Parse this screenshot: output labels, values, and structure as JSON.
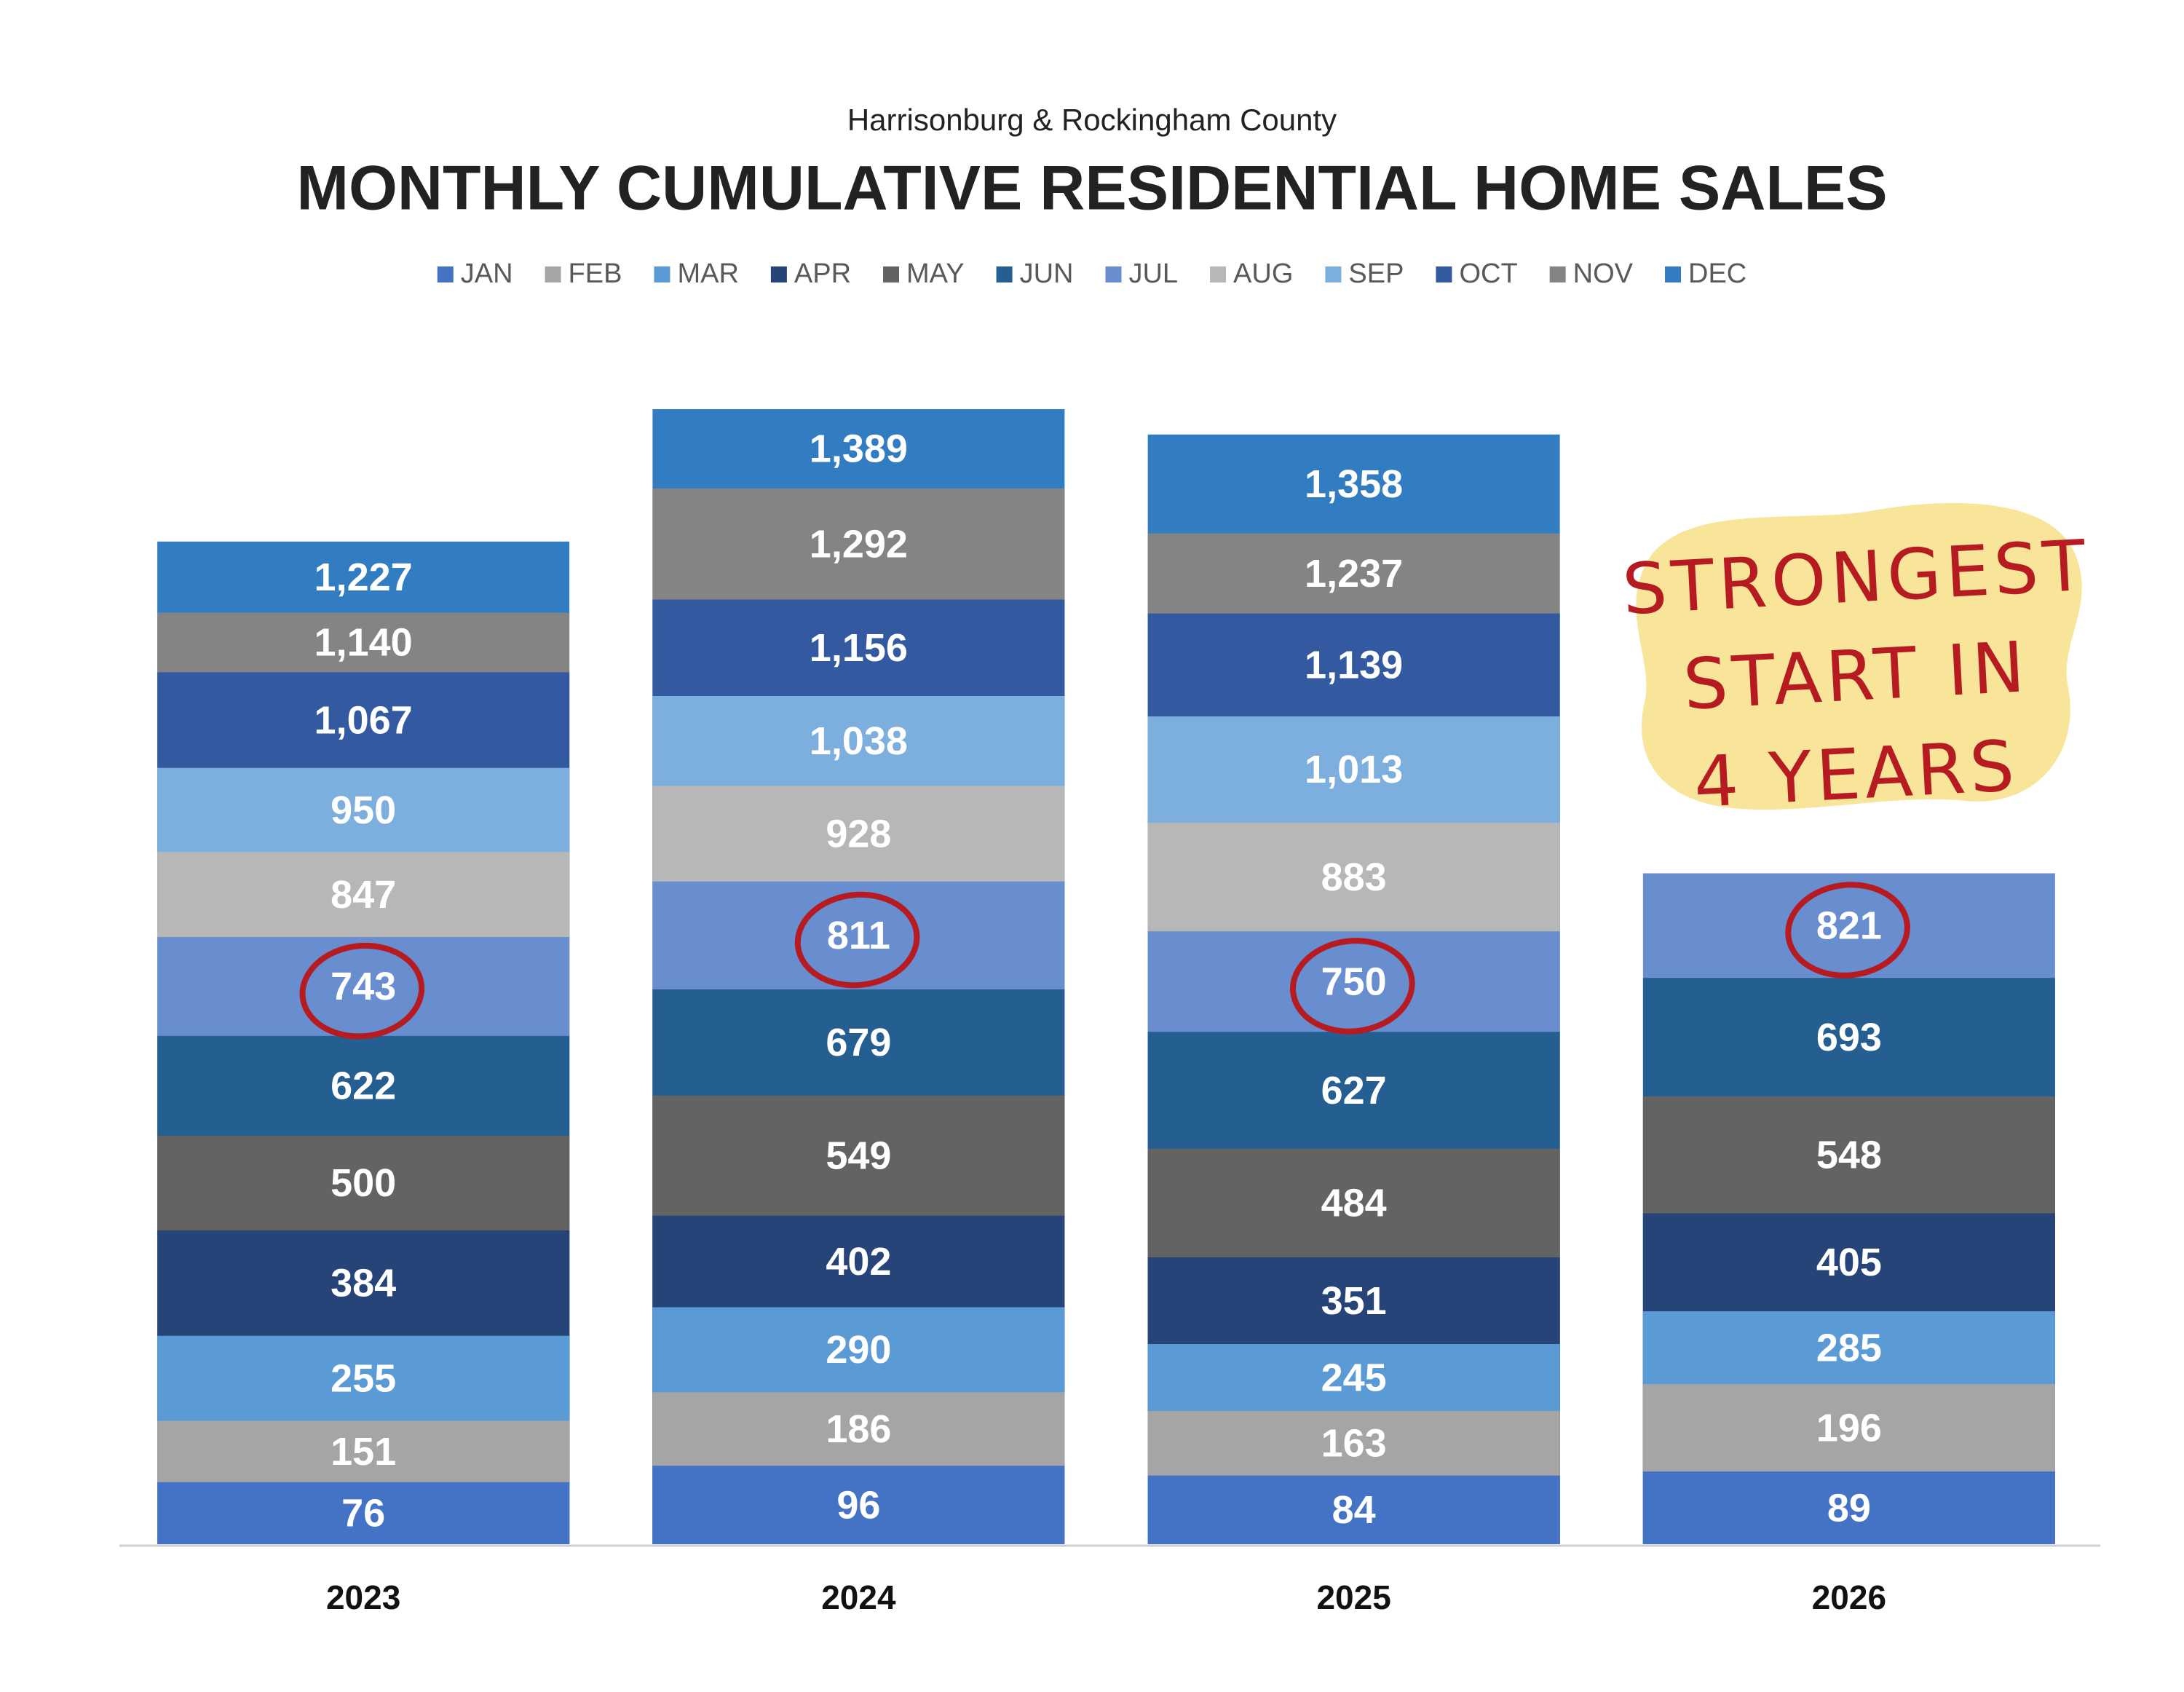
{
  "chart_data": {
    "type": "bar",
    "subtitle": "Harrisonburg & Rockingham County",
    "title": "MONTHLY CUMULATIVE RESIDENTIAL HOME SALES",
    "categories": [
      "2023",
      "2024",
      "2025",
      "2026"
    ],
    "series": [
      {
        "name": "JAN",
        "color": "#4472c4",
        "values": [
          76,
          96,
          84,
          89
        ],
        "value_labels": [
          "76",
          "96",
          "84",
          "89"
        ]
      },
      {
        "name": "FEB",
        "color": "#a5a5a5",
        "values": [
          151,
          186,
          163,
          196
        ],
        "value_labels": [
          "151",
          "186",
          "163",
          "196"
        ]
      },
      {
        "name": "MAR",
        "color": "#5b9bd5",
        "values": [
          255,
          290,
          245,
          285
        ],
        "value_labels": [
          "255",
          "290",
          "245",
          "285"
        ]
      },
      {
        "name": "APR",
        "color": "#264478",
        "values": [
          384,
          402,
          351,
          405
        ],
        "value_labels": [
          "384",
          "402",
          "351",
          "405"
        ]
      },
      {
        "name": "MAY",
        "color": "#636363",
        "values": [
          500,
          549,
          484,
          548
        ],
        "value_labels": [
          "500",
          "549",
          "484",
          "548"
        ]
      },
      {
        "name": "JUN",
        "color": "#255e91",
        "values": [
          622,
          679,
          627,
          693
        ],
        "value_labels": [
          "622",
          "679",
          "627",
          "693"
        ]
      },
      {
        "name": "JUL",
        "color": "#698ed0",
        "values": [
          743,
          811,
          750,
          821
        ],
        "value_labels": [
          "743",
          "811",
          "750",
          "821"
        ]
      },
      {
        "name": "AUG",
        "color": "#b7b7b7",
        "values": [
          847,
          928,
          883,
          null
        ],
        "value_labels": [
          "847",
          "928",
          "883",
          null
        ]
      },
      {
        "name": "SEP",
        "color": "#7cafdd",
        "values": [
          950,
          1038,
          1013,
          null
        ],
        "value_labels": [
          "950",
          "1,038",
          "1,013",
          null
        ]
      },
      {
        "name": "OCT",
        "color": "#335aa1",
        "values": [
          1067,
          1156,
          1139,
          null
        ],
        "value_labels": [
          "1,067",
          "1,156",
          "1,139",
          null
        ]
      },
      {
        "name": "NOV",
        "color": "#848484",
        "values": [
          1140,
          1292,
          1237,
          null
        ],
        "value_labels": [
          "1,140",
          "1,292",
          "1,237",
          null
        ]
      },
      {
        "name": "DEC",
        "color": "#327dc2",
        "values": [
          1227,
          1389,
          1358,
          null
        ],
        "value_labels": [
          "1,227",
          "1,389",
          "1,358",
          null
        ]
      }
    ],
    "annotation": [
      "STRONGEST",
      "START IN",
      "4 YEARS"
    ],
    "legend": "top"
  }
}
